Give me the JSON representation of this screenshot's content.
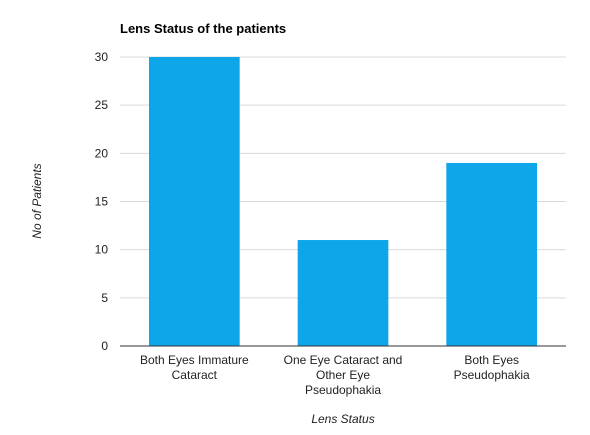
{
  "chart_data": {
    "type": "bar",
    "title": "Lens Status of the patients",
    "xlabel": "Lens Status",
    "ylabel": "No of Patients",
    "categories": [
      [
        "Both Eyes Immature",
        "Cataract"
      ],
      [
        "One Eye Cataract and",
        "Other Eye",
        "Pseudophakia"
      ],
      [
        "Both Eyes",
        "Pseudophakia"
      ]
    ],
    "values": [
      30,
      11,
      19
    ],
    "ylim": [
      0,
      30
    ],
    "yticks": [
      0,
      5,
      10,
      15,
      20,
      25,
      30
    ],
    "grid": true,
    "legend": "none",
    "bar_color": "#0ea5e9"
  }
}
